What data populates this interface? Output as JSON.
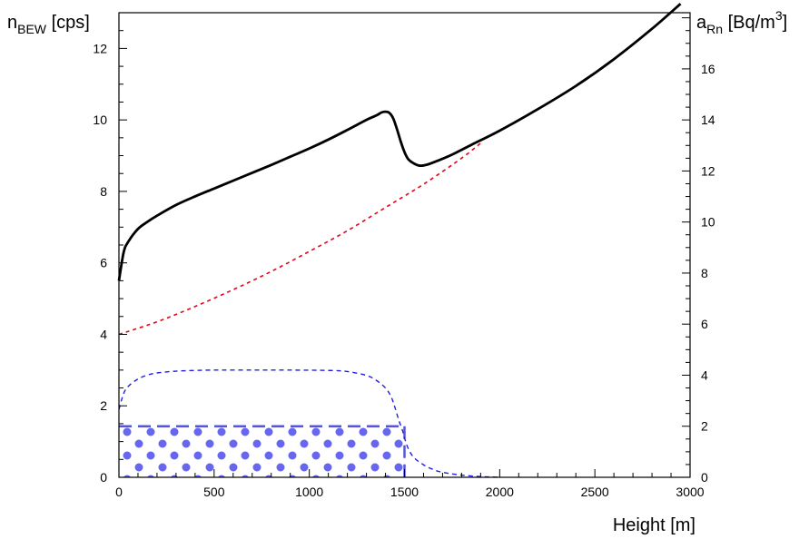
{
  "chart_data": {
    "type": "line",
    "title": "",
    "xlabel": "Height [m]",
    "ylabel_left": {
      "main": "n",
      "sub": "BEW",
      "rest": " [cps]"
    },
    "ylabel_right": {
      "main": "a",
      "sub": "Rn",
      "rest": " [Bq/m",
      "sup": "3",
      "close": "]"
    },
    "xlim": [
      0,
      3000
    ],
    "ylim_left": [
      0,
      13
    ],
    "ylim_right": [
      0,
      18.2
    ],
    "x_ticks": [
      0,
      500,
      1000,
      1500,
      2000,
      2500,
      3000
    ],
    "y_ticks_left": [
      0,
      2,
      4,
      6,
      8,
      10,
      12
    ],
    "y_ticks_right": [
      0,
      2,
      4,
      6,
      8,
      10,
      12,
      14,
      16
    ],
    "grid": false,
    "series": [
      {
        "axis": "left",
        "color": "#000000",
        "style": "solid",
        "x": [
          0,
          25,
          50,
          100,
          150,
          200,
          300,
          400,
          500,
          600,
          700,
          800,
          900,
          1000,
          1100,
          1200,
          1300,
          1350,
          1380,
          1400,
          1420,
          1440,
          1460,
          1480,
          1500,
          1520,
          1550,
          1580,
          1620,
          1680,
          1750,
          1850,
          2000,
          2200,
          2400,
          2600,
          2800,
          2950
        ],
        "values": [
          5.5,
          6.3,
          6.6,
          6.95,
          7.15,
          7.32,
          7.62,
          7.86,
          8.08,
          8.3,
          8.52,
          8.74,
          8.97,
          9.2,
          9.45,
          9.72,
          10.0,
          10.12,
          10.21,
          10.23,
          10.2,
          10.05,
          9.75,
          9.4,
          9.1,
          8.9,
          8.78,
          8.72,
          8.75,
          8.87,
          9.03,
          9.3,
          9.7,
          10.3,
          10.95,
          11.7,
          12.55,
          13.25
        ]
      },
      {
        "axis": "left",
        "color": "#e8001c",
        "style": "dotted",
        "x": [
          0,
          200,
          400,
          600,
          800,
          1000,
          1200,
          1400,
          1600,
          1800,
          1900
        ],
        "values": [
          4.0,
          4.35,
          4.78,
          5.25,
          5.76,
          6.32,
          6.9,
          7.55,
          8.2,
          8.93,
          9.35
        ]
      },
      {
        "axis": "left",
        "color": "#2020e0",
        "style": "dashed",
        "x": [
          0,
          25,
          50,
          100,
          150,
          200,
          300,
          400,
          500,
          700,
          900,
          1100,
          1200,
          1300,
          1350,
          1400,
          1430,
          1450,
          1470,
          1490,
          1500,
          1520,
          1550,
          1600,
          1650,
          1700,
          1800,
          1900,
          1950,
          2000
        ],
        "values": [
          1.9,
          2.35,
          2.55,
          2.75,
          2.86,
          2.92,
          2.97,
          2.99,
          3.0,
          3.0,
          3.0,
          2.99,
          2.96,
          2.85,
          2.72,
          2.5,
          2.25,
          1.95,
          1.6,
          1.3,
          1.1,
          0.8,
          0.55,
          0.35,
          0.22,
          0.14,
          0.06,
          0.02,
          0.01,
          0.0
        ]
      }
    ],
    "region": {
      "axis": "right",
      "x_range": [
        0,
        1500
      ],
      "y_range": [
        0,
        2.0
      ],
      "fill_color": "#6666ee",
      "edge_color": "#5555dd",
      "pattern": "dots"
    }
  }
}
